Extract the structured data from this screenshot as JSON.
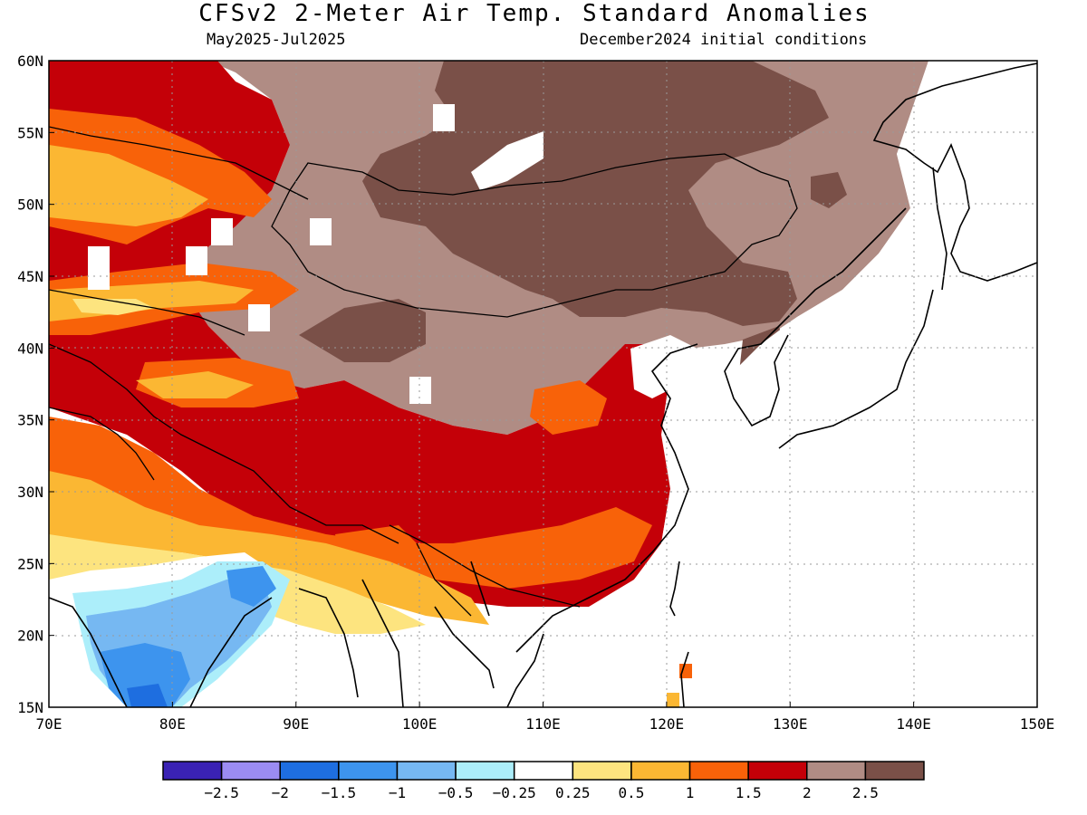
{
  "header": {
    "title": "CFSv2 2-Meter Air Temp. Standard Anomalies",
    "period": "May2025-Jul2025",
    "init": "December2024 initial conditions"
  },
  "axes": {
    "lat_ticks": [
      "15N",
      "20N",
      "25N",
      "30N",
      "35N",
      "40N",
      "45N",
      "50N",
      "55N",
      "60N"
    ],
    "lon_ticks": [
      "70E",
      "80E",
      "90E",
      "100E",
      "110E",
      "120E",
      "130E",
      "140E",
      "150E"
    ]
  },
  "colorbar": {
    "colors": [
      "#3a22b4",
      "#9b8cf2",
      "#1e6ee0",
      "#3d94ee",
      "#76b8f2",
      "#aceefa",
      "#ffffff",
      "#fde47f",
      "#fbb733",
      "#f86209",
      "#c40008",
      "#b08c84",
      "#7a5048"
    ],
    "labels": [
      "-2.5",
      "-2",
      "-1.5",
      "-1",
      "-0.5",
      "-0.25",
      "0.25",
      "0.5",
      "1",
      "1.5",
      "2",
      "2.5"
    ]
  },
  "chart_data": {
    "type": "heatmap",
    "title": "CFSv2 2-Meter Air Temp. Standard Anomalies",
    "subtitle": "May2025-Jul2025",
    "note": "December2024 initial conditions",
    "xlim": [
      70,
      150
    ],
    "ylim": [
      15,
      60
    ],
    "legend_levels": [
      -2.5,
      -2,
      -1.5,
      -1,
      -0.5,
      -0.25,
      0.25,
      0.5,
      1,
      1.5,
      2,
      2.5
    ]
  }
}
